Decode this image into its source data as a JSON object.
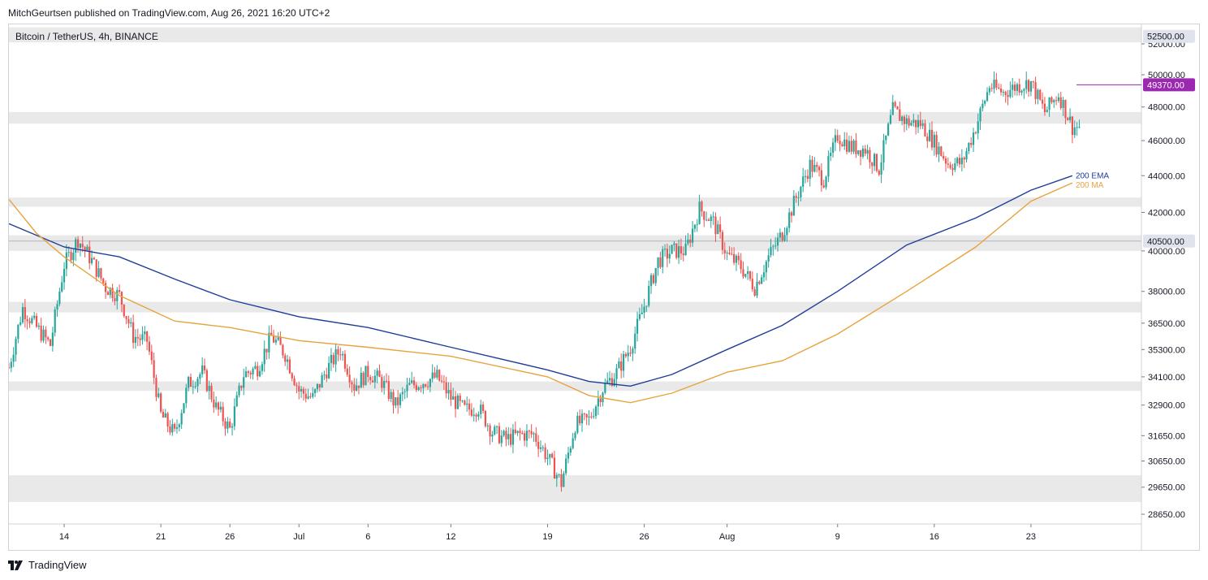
{
  "header": {
    "text": "MitchGeurtsen published on TradingView.com, Aug 26, 2021 16:20 UTC+2"
  },
  "symbol": {
    "text": "Bitcoin / TetherUS, 4h, BINANCE"
  },
  "footer": {
    "brand": "TradingView"
  },
  "colors": {
    "up": "#26a69a",
    "down": "#ef5350",
    "ema": "#1f3d99",
    "ma": "#e8a33d",
    "zone": "#e9e9ea",
    "price_marker": "#9c27b0",
    "axis_text": "#131722"
  },
  "chart_data": {
    "type": "candlestick",
    "title": "Bitcoin / TetherUS, 4h, BINANCE",
    "y_axis": {
      "scale": "log",
      "range": [
        28300,
        53300
      ],
      "ticks": [
        52000,
        50000,
        48000,
        46000,
        44000,
        42000,
        40000,
        38000,
        36500,
        35300,
        34100,
        32900,
        31650,
        30650,
        29650,
        28650
      ],
      "tick_labels": [
        "52000.00",
        "50000.00",
        "48000.00",
        "46000.00",
        "44000.00",
        "42000.00",
        "40000.00",
        "38000.00",
        "36500.00",
        "35300.00",
        "34100.00",
        "32900.00",
        "31650.00",
        "30650.00",
        "29650.00",
        "28650.00"
      ]
    },
    "x_axis": {
      "range": [
        "2021-06-10",
        "2021-08-31"
      ],
      "ticks": [
        {
          "date": "2021-06-14",
          "label": "14"
        },
        {
          "date": "2021-06-21",
          "label": "21"
        },
        {
          "date": "2021-06-26",
          "label": "26"
        },
        {
          "date": "2021-07-01",
          "label": "Jul"
        },
        {
          "date": "2021-07-06",
          "label": "6"
        },
        {
          "date": "2021-07-12",
          "label": "12"
        },
        {
          "date": "2021-07-19",
          "label": "19"
        },
        {
          "date": "2021-07-26",
          "label": "26"
        },
        {
          "date": "2021-08-01",
          "label": "Aug"
        },
        {
          "date": "2021-08-09",
          "label": "9"
        },
        {
          "date": "2021-08-16",
          "label": "16"
        },
        {
          "date": "2021-08-23",
          "label": "23"
        }
      ]
    },
    "price_path": [
      [
        "2021-06-10",
        34500
      ],
      [
        "2021-06-11",
        37200
      ],
      [
        "2021-06-12",
        36300
      ],
      [
        "2021-06-13",
        35500
      ],
      [
        "2021-06-14",
        39300
      ],
      [
        "2021-06-15",
        40600
      ],
      [
        "2021-06-16",
        39500
      ],
      [
        "2021-06-17",
        38200
      ],
      [
        "2021-06-18",
        37800
      ],
      [
        "2021-06-19",
        35900
      ],
      [
        "2021-06-20",
        35700
      ],
      [
        "2021-06-21",
        32500
      ],
      [
        "2021-06-22",
        31700
      ],
      [
        "2021-06-23",
        33800
      ],
      [
        "2021-06-24",
        34300
      ],
      [
        "2021-06-25",
        32800
      ],
      [
        "2021-06-26",
        31900
      ],
      [
        "2021-06-27",
        34200
      ],
      [
        "2021-06-28",
        34500
      ],
      [
        "2021-06-29",
        35900
      ],
      [
        "2021-06-30",
        35100
      ],
      [
        "2021-07-01",
        33500
      ],
      [
        "2021-07-02",
        33200
      ],
      [
        "2021-07-03",
        34400
      ],
      [
        "2021-07-04",
        35300
      ],
      [
        "2021-07-05",
        33700
      ],
      [
        "2021-07-06",
        34300
      ],
      [
        "2021-07-07",
        33900
      ],
      [
        "2021-07-08",
        32900
      ],
      [
        "2021-07-09",
        33700
      ],
      [
        "2021-07-10",
        33900
      ],
      [
        "2021-07-11",
        34100
      ],
      [
        "2021-07-12",
        33200
      ],
      [
        "2021-07-13",
        32700
      ],
      [
        "2021-07-14",
        32800
      ],
      [
        "2021-07-15",
        31800
      ],
      [
        "2021-07-16",
        31500
      ],
      [
        "2021-07-17",
        31700
      ],
      [
        "2021-07-18",
        31700
      ],
      [
        "2021-07-19",
        30800
      ],
      [
        "2021-07-20",
        29800
      ],
      [
        "2021-07-21",
        32100
      ],
      [
        "2021-07-22",
        32300
      ],
      [
        "2021-07-23",
        33600
      ],
      [
        "2021-07-24",
        34300
      ],
      [
        "2021-07-25",
        35400
      ],
      [
        "2021-07-26",
        37300
      ],
      [
        "2021-07-27",
        39500
      ],
      [
        "2021-07-28",
        40000
      ],
      [
        "2021-07-29",
        40000
      ],
      [
        "2021-07-30",
        42200
      ],
      [
        "2021-07-31",
        41500
      ],
      [
        "2021-08-01",
        39800
      ],
      [
        "2021-08-02",
        39200
      ],
      [
        "2021-08-03",
        38200
      ],
      [
        "2021-08-04",
        39700
      ],
      [
        "2021-08-05",
        40900
      ],
      [
        "2021-08-06",
        42800
      ],
      [
        "2021-08-07",
        44600
      ],
      [
        "2021-08-08",
        43800
      ],
      [
        "2021-08-09",
        46300
      ],
      [
        "2021-08-10",
        45600
      ],
      [
        "2021-08-11",
        45500
      ],
      [
        "2021-08-12",
        44400
      ],
      [
        "2021-08-13",
        47800
      ],
      [
        "2021-08-14",
        47100
      ],
      [
        "2021-08-15",
        47000
      ],
      [
        "2021-08-16",
        45900
      ],
      [
        "2021-08-17",
        44700
      ],
      [
        "2021-08-18",
        44700
      ],
      [
        "2021-08-19",
        46800
      ],
      [
        "2021-08-20",
        49300
      ],
      [
        "2021-08-21",
        48900
      ],
      [
        "2021-08-22",
        49300
      ],
      [
        "2021-08-23",
        49500
      ],
      [
        "2021-08-24",
        47700
      ],
      [
        "2021-08-25",
        48800
      ],
      [
        "2021-08-26",
        46800
      ]
    ],
    "ema_200": [
      [
        "2021-06-10",
        41400
      ],
      [
        "2021-06-14",
        40200
      ],
      [
        "2021-06-18",
        39700
      ],
      [
        "2021-06-22",
        38600
      ],
      [
        "2021-06-26",
        37600
      ],
      [
        "2021-07-01",
        36800
      ],
      [
        "2021-07-06",
        36300
      ],
      [
        "2021-07-12",
        35400
      ],
      [
        "2021-07-19",
        34400
      ],
      [
        "2021-07-22",
        33900
      ],
      [
        "2021-07-25",
        33700
      ],
      [
        "2021-07-28",
        34200
      ],
      [
        "2021-08-01",
        35300
      ],
      [
        "2021-08-05",
        36400
      ],
      [
        "2021-08-09",
        38000
      ],
      [
        "2021-08-14",
        40300
      ],
      [
        "2021-08-19",
        41700
      ],
      [
        "2021-08-23",
        43200
      ],
      [
        "2021-08-26",
        44000
      ]
    ],
    "ma_200": [
      [
        "2021-06-10",
        42700
      ],
      [
        "2021-06-12",
        40900
      ],
      [
        "2021-06-14",
        39700
      ],
      [
        "2021-06-18",
        37800
      ],
      [
        "2021-06-22",
        36600
      ],
      [
        "2021-06-26",
        36300
      ],
      [
        "2021-07-01",
        35700
      ],
      [
        "2021-07-06",
        35400
      ],
      [
        "2021-07-12",
        35000
      ],
      [
        "2021-07-19",
        34100
      ],
      [
        "2021-07-22",
        33300
      ],
      [
        "2021-07-25",
        33000
      ],
      [
        "2021-07-28",
        33400
      ],
      [
        "2021-08-01",
        34300
      ],
      [
        "2021-08-05",
        34800
      ],
      [
        "2021-08-09",
        36000
      ],
      [
        "2021-08-14",
        38000
      ],
      [
        "2021-08-19",
        40200
      ],
      [
        "2021-08-23",
        42600
      ],
      [
        "2021-08-26",
        43600
      ]
    ],
    "series": [
      {
        "name": "200 EMA",
        "color": "#1f3d99"
      },
      {
        "name": "200 MA",
        "color": "#e8a33d"
      }
    ],
    "zones": [
      [
        52100,
        53100
      ],
      [
        47000,
        47700
      ],
      [
        42300,
        42800
      ],
      [
        40000,
        40800
      ],
      [
        37000,
        37500
      ],
      [
        33500,
        33900
      ],
      [
        29100,
        30100
      ]
    ],
    "price_labels": [
      {
        "value": 52500,
        "label": "52500.00",
        "style": "level"
      },
      {
        "value": 49370,
        "label": "49370.00",
        "style": "current"
      },
      {
        "value": 40500,
        "label": "40500.00",
        "style": "level"
      }
    ],
    "horizontal_line": 40500,
    "grid": false
  }
}
